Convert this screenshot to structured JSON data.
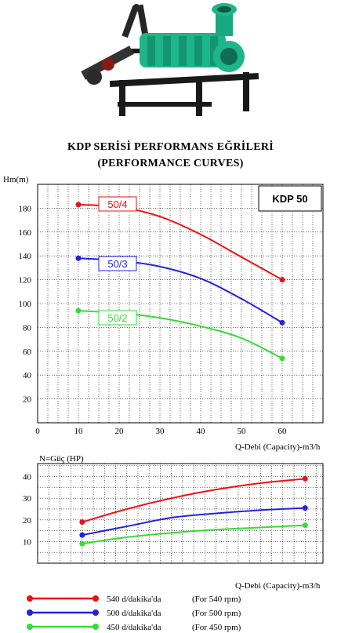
{
  "header": {
    "title_line1": "KDP SERİSİ PERFORMANS EĞRİLERİ",
    "title_line2": "(PERFORMANCE CURVES)"
  },
  "colors": {
    "red": "#ee1111",
    "blue": "#2222dd",
    "green": "#33dd33"
  },
  "chart_data": [
    {
      "type": "line",
      "model_label": "KDP 50",
      "ylabel": "Hm(m)",
      "xlabel": "Q-Debi (Capacity)-m3/h",
      "xlim": [
        0,
        70
      ],
      "ylim": [
        0,
        200
      ],
      "x_ticks": [
        0,
        10,
        20,
        30,
        40,
        50,
        60
      ],
      "y_ticks": [
        20,
        40,
        60,
        80,
        100,
        120,
        140,
        160,
        180
      ],
      "grid": true,
      "series": [
        {
          "name": "50/4",
          "color": "#ee1111",
          "x": [
            10,
            20,
            30,
            40,
            50,
            60
          ],
          "y": [
            183,
            181,
            173,
            158,
            139,
            120
          ]
        },
        {
          "name": "50/3",
          "color": "#2222dd",
          "x": [
            10,
            20,
            30,
            40,
            50,
            60
          ],
          "y": [
            138,
            136,
            131,
            121,
            104,
            84
          ]
        },
        {
          "name": "50/2",
          "color": "#33dd33",
          "x": [
            10,
            20,
            30,
            40,
            50,
            60
          ],
          "y": [
            94,
            92,
            88,
            81,
            71,
            54
          ]
        }
      ]
    },
    {
      "type": "line",
      "ylabel": "N=Güç (HP)",
      "xlabel": "Q-Debi (Capacity)-m3/h",
      "xlim": [
        0,
        64
      ],
      "ylim": [
        0,
        46
      ],
      "y_ticks": [
        10,
        20,
        30,
        40
      ],
      "grid": true,
      "series": [
        {
          "color": "#ee1111",
          "x": [
            10,
            20,
            30,
            40,
            50,
            60
          ],
          "y": [
            19,
            25,
            30,
            34,
            37,
            39
          ]
        },
        {
          "color": "#2222dd",
          "x": [
            10,
            20,
            30,
            40,
            50,
            60
          ],
          "y": [
            13,
            17,
            21,
            23,
            24.5,
            25.5
          ]
        },
        {
          "color": "#33dd33",
          "x": [
            10,
            20,
            30,
            40,
            50,
            60
          ],
          "y": [
            9,
            12,
            14,
            15.5,
            16.5,
            17.5
          ]
        }
      ]
    }
  ],
  "legend": [
    {
      "color": "#ee1111",
      "label": "540 d/dakika'da",
      "label_en": "(For  540 rpm)"
    },
    {
      "color": "#2222dd",
      "label": "500 d/dakika'da",
      "label_en": "(For  500 rpm)"
    },
    {
      "color": "#33dd33",
      "label": "450 d/dakika'da",
      "label_en": "(For  450 rpm)"
    }
  ]
}
